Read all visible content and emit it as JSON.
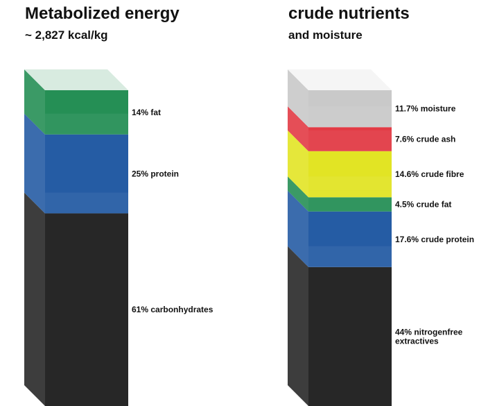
{
  "chart_data": [
    {
      "type": "stacked-bar-3d",
      "title": "Metabolized energy",
      "subtitle": "~ 2,827 kcal/kg",
      "segments": [
        {
          "name": "carbonhydrates",
          "label": "61% carbonhydrates",
          "value": 61,
          "color": "#272727"
        },
        {
          "name": "protein",
          "label": "25% protein",
          "value": 25,
          "color": "#255ca4"
        },
        {
          "name": "fat",
          "label": "14% fat",
          "value": 14,
          "color": "#258f55"
        }
      ]
    },
    {
      "type": "stacked-bar-3d",
      "title": "crude nutrients",
      "subtitle": "and moisture",
      "segments": [
        {
          "name": "nitrogenfree extractives",
          "label": "44% nitrogenfree extractives",
          "label_lines": [
            "44% nitrogenfree",
            "extractives"
          ],
          "value": 44,
          "color": "#272727"
        },
        {
          "name": "crude protein",
          "label": "17.6% crude protein",
          "value": 17.6,
          "color": "#255ca4"
        },
        {
          "name": "crude fat",
          "label": "4.5% crude fat",
          "value": 4.5,
          "color": "#258f55"
        },
        {
          "name": "crude fibre",
          "label": "14.6% crude fibre",
          "value": 14.6,
          "color": "#e2e424"
        },
        {
          "name": "crude ash",
          "label": "7.6% crude ash",
          "value": 7.6,
          "color": "#e23a44"
        },
        {
          "name": "moisture",
          "label": "11.7% moisture",
          "value": 11.7,
          "color": "#c9c9c9"
        }
      ]
    }
  ]
}
